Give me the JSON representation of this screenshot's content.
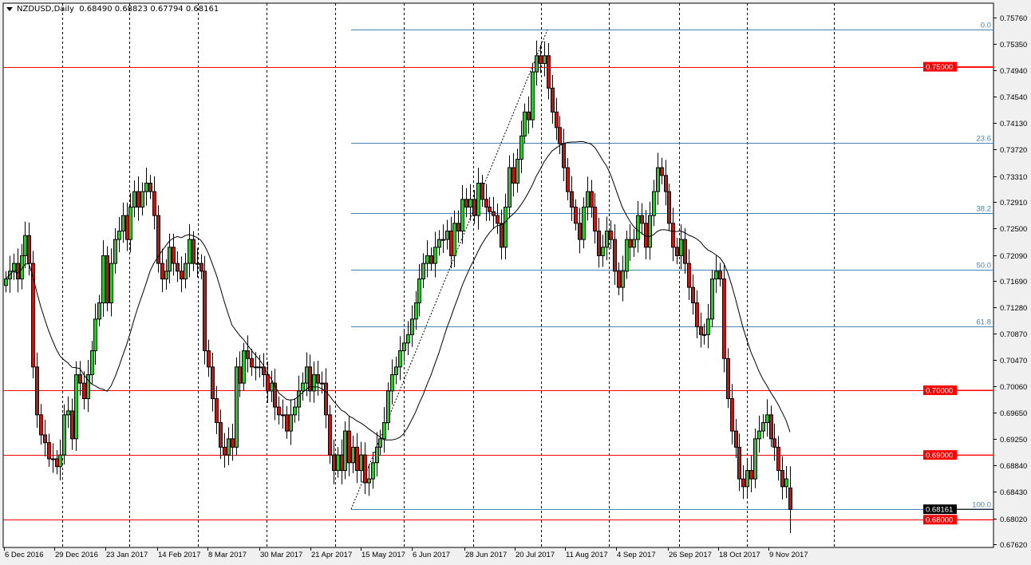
{
  "header": {
    "symbol": "NZDUSD,Daily",
    "ohlc": "0.68490 0.68823 0.67794 0.68161"
  },
  "colors": {
    "background": "#ffffff",
    "bull_candle": "#22cc22",
    "bear_candle": "#cc1111",
    "candle_outline": "#000000",
    "fib_line": "#4682b4",
    "level_line": "#ff0000",
    "ma_line": "#000000",
    "current_price_bg": "#000000",
    "level_label_bg": "#ff0000"
  },
  "chart_data": {
    "type": "candlestick",
    "title": "NZDUSD,Daily",
    "ylim": [
      0.6762,
      0.7576
    ],
    "y_ticks": [
      "0.75760",
      "0.75350",
      "0.74940",
      "0.74540",
      "0.74130",
      "0.73720",
      "0.73310",
      "0.72910",
      "0.72500",
      "0.72090",
      "0.71690",
      "0.71280",
      "0.70870",
      "0.70470",
      "0.70060",
      "0.69650",
      "0.69250",
      "0.68840",
      "0.68430",
      "0.68020",
      "0.67620"
    ],
    "x_ticks": [
      "6 Dec 2016",
      "29 Dec 2016",
      "23 Jan 2017",
      "14 Feb 2017",
      "8 Mar 2017",
      "30 Mar 2017",
      "21 Apr 2017",
      "15 May 2017",
      "6 Jun 2017",
      "28 Jun 2017",
      "20 Jul 2017",
      "11 Aug 2017",
      "4 Sep 2017",
      "26 Sep 2017",
      "18 Oct 2017",
      "9 Nov 2017"
    ],
    "grid": true,
    "closes": [
      0.7172,
      0.7184,
      0.7196,
      0.7172,
      0.7208,
      0.7239,
      0.7196,
      0.7036,
      0.6962,
      0.6931,
      0.6919,
      0.6894,
      0.6894,
      0.6882,
      0.69,
      0.6962,
      0.6968,
      0.6925,
      0.7024,
      0.7011,
      0.6987,
      0.7024,
      0.7061,
      0.711,
      0.7135,
      0.7208,
      0.7135,
      0.7196,
      0.7233,
      0.7246,
      0.727,
      0.7233,
      0.7283,
      0.7307,
      0.7283,
      0.7307,
      0.732,
      0.7307,
      0.727,
      0.7196,
      0.7172,
      0.7184,
      0.7221,
      0.7196,
      0.7184,
      0.7172,
      0.7196,
      0.7233,
      0.7196,
      0.7196,
      0.7184,
      0.7061,
      0.7036,
      0.6987,
      0.695,
      0.6912,
      0.69,
      0.6925,
      0.6912,
      0.7036,
      0.7011,
      0.7061,
      0.7049,
      0.7036,
      0.7036,
      0.7036,
      0.7024,
      0.6999,
      0.7011,
      0.6974,
      0.6962,
      0.6962,
      0.6937,
      0.6962,
      0.6974,
      0.6999,
      0.7011,
      0.7036,
      0.6999,
      0.7024,
      0.7011,
      0.7011,
      0.6962,
      0.69,
      0.6876,
      0.69,
      0.6876,
      0.6937,
      0.6888,
      0.6912,
      0.6876,
      0.69,
      0.6857,
      0.6863,
      0.6888,
      0.6912,
      0.6925,
      0.695,
      0.6999,
      0.7024,
      0.7036,
      0.7061,
      0.7073,
      0.7086,
      0.711,
      0.7135,
      0.7172,
      0.7196,
      0.7208,
      0.7196,
      0.7221,
      0.7233,
      0.7233,
      0.7246,
      0.7208,
      0.7258,
      0.7246,
      0.7295,
      0.7283,
      0.7295,
      0.727,
      0.732,
      0.7295,
      0.7283,
      0.7276,
      0.727,
      0.7258,
      0.7221,
      0.7283,
      0.7344,
      0.732,
      0.7357,
      0.7393,
      0.743,
      0.7418,
      0.7492,
      0.7517,
      0.7505,
      0.7517,
      0.7467,
      0.743,
      0.7406,
      0.7381,
      0.7344,
      0.7307,
      0.7283,
      0.7258,
      0.7233,
      0.7283,
      0.7307,
      0.7283,
      0.7246,
      0.7208,
      0.7221,
      0.7246,
      0.7233,
      0.7184,
      0.7159,
      0.7184,
      0.7233,
      0.7221,
      0.7233,
      0.727,
      0.7258,
      0.7221,
      0.727,
      0.7307,
      0.7344,
      0.7332,
      0.7307,
      0.7258,
      0.7221,
      0.7208,
      0.7233,
      0.7196,
      0.7159,
      0.7135,
      0.7098,
      0.7086,
      0.7086,
      0.711,
      0.7172,
      0.7184,
      0.7172,
      0.7049,
      0.6987,
      0.6937,
      0.6912,
      0.6863,
      0.6851,
      0.6876,
      0.6863,
      0.6925,
      0.6937,
      0.695,
      0.6962,
      0.6925,
      0.6912,
      0.6876,
      0.6851,
      0.6863,
      0.6816
    ],
    "last_bar": {
      "open": 0.6849,
      "high": 0.68823,
      "low": 0.67794,
      "close": 0.68161
    },
    "current_price_label": "0.68161",
    "horizontal_levels": [
      {
        "price": 0.75,
        "label": "0.75000"
      },
      {
        "price": 0.7,
        "label": "0.70000"
      },
      {
        "price": 0.69,
        "label": "0.69000"
      },
      {
        "price": 0.68,
        "label": "0.68000"
      }
    ],
    "fibonacci": {
      "low": 0.6816,
      "high": 0.7557,
      "levels": [
        {
          "ratio": 0.0,
          "label": "0.0"
        },
        {
          "ratio": 23.6,
          "label": "23.6"
        },
        {
          "ratio": 38.2,
          "label": "38.2"
        },
        {
          "ratio": 50.0,
          "label": "50.0"
        },
        {
          "ratio": 61.8,
          "label": "61.8"
        },
        {
          "ratio": 100.0,
          "label": "100.0"
        }
      ]
    },
    "indicator": "moving average"
  }
}
